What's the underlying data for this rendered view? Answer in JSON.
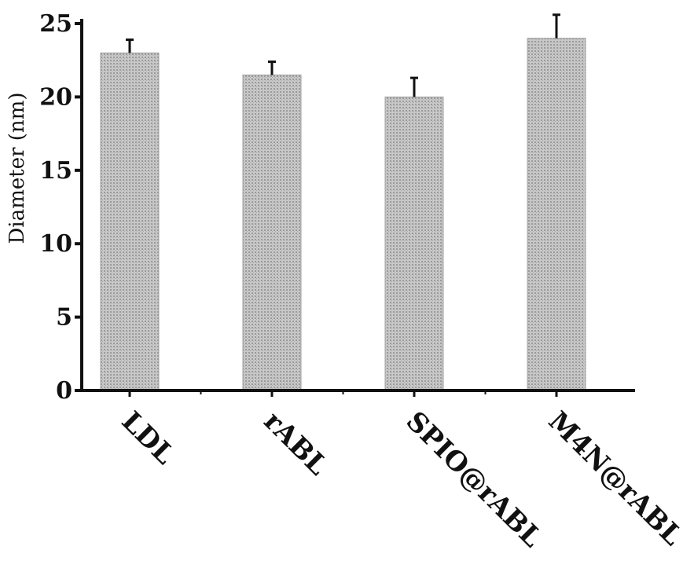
{
  "chart_data": {
    "type": "bar",
    "title": "",
    "xlabel": "",
    "ylabel": "Diameter (nm)",
    "categories": [
      "LDL",
      "rABL",
      "SPIO@rABL",
      "M4N@rABL"
    ],
    "values": [
      23.0,
      21.5,
      20.0,
      24.0
    ],
    "errors": [
      0.9,
      0.9,
      1.3,
      1.6
    ],
    "ylim": [
      0,
      25
    ],
    "yticks": [
      0,
      5,
      10,
      15,
      20,
      25
    ],
    "ytick_labels": [
      "0",
      "5",
      "10",
      "15",
      "20",
      "25"
    ],
    "grid": false,
    "legend": "none",
    "bar_color": "#b8b8b8"
  }
}
